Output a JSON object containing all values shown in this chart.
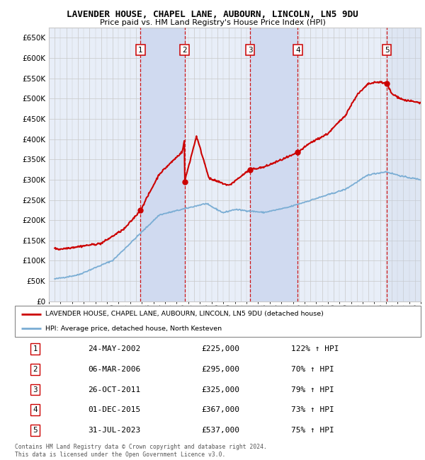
{
  "title": "LAVENDER HOUSE, CHAPEL LANE, AUBOURN, LINCOLN, LN5 9DU",
  "subtitle": "Price paid vs. HM Land Registry's House Price Index (HPI)",
  "ylim": [
    0,
    675000
  ],
  "yticks": [
    0,
    50000,
    100000,
    150000,
    200000,
    250000,
    300000,
    350000,
    400000,
    450000,
    500000,
    550000,
    600000,
    650000
  ],
  "xlim_start": 1994.5,
  "xlim_end": 2026.5,
  "sale_dates": [
    2002.385,
    2006.178,
    2011.819,
    2015.918,
    2023.578
  ],
  "sale_prices": [
    225000,
    295000,
    325000,
    367000,
    537000
  ],
  "sale_labels": [
    "1",
    "2",
    "3",
    "4",
    "5"
  ],
  "sale_info": [
    {
      "num": "1",
      "date": "24-MAY-2002",
      "price": "£225,000",
      "hpi": "122% ↑ HPI"
    },
    {
      "num": "2",
      "date": "06-MAR-2006",
      "price": "£295,000",
      "hpi": "70% ↑ HPI"
    },
    {
      "num": "3",
      "date": "26-OCT-2011",
      "price": "£325,000",
      "hpi": "79% ↑ HPI"
    },
    {
      "num": "4",
      "date": "01-DEC-2015",
      "price": "£367,000",
      "hpi": "73% ↑ HPI"
    },
    {
      "num": "5",
      "date": "31-JUL-2023",
      "price": "£537,000",
      "hpi": "75% ↑ HPI"
    }
  ],
  "legend_line1": "LAVENDER HOUSE, CHAPEL LANE, AUBOURN, LINCOLN, LN5 9DU (detached house)",
  "legend_line2": "HPI: Average price, detached house, North Kesteven",
  "footer": "Contains HM Land Registry data © Crown copyright and database right 2024.\nThis data is licensed under the Open Government Licence v3.0.",
  "red_color": "#cc0000",
  "blue_color": "#7aadd4",
  "background_color": "#e8eef8",
  "grid_color": "#c8c8c8",
  "shade_color": "#d0daf0"
}
